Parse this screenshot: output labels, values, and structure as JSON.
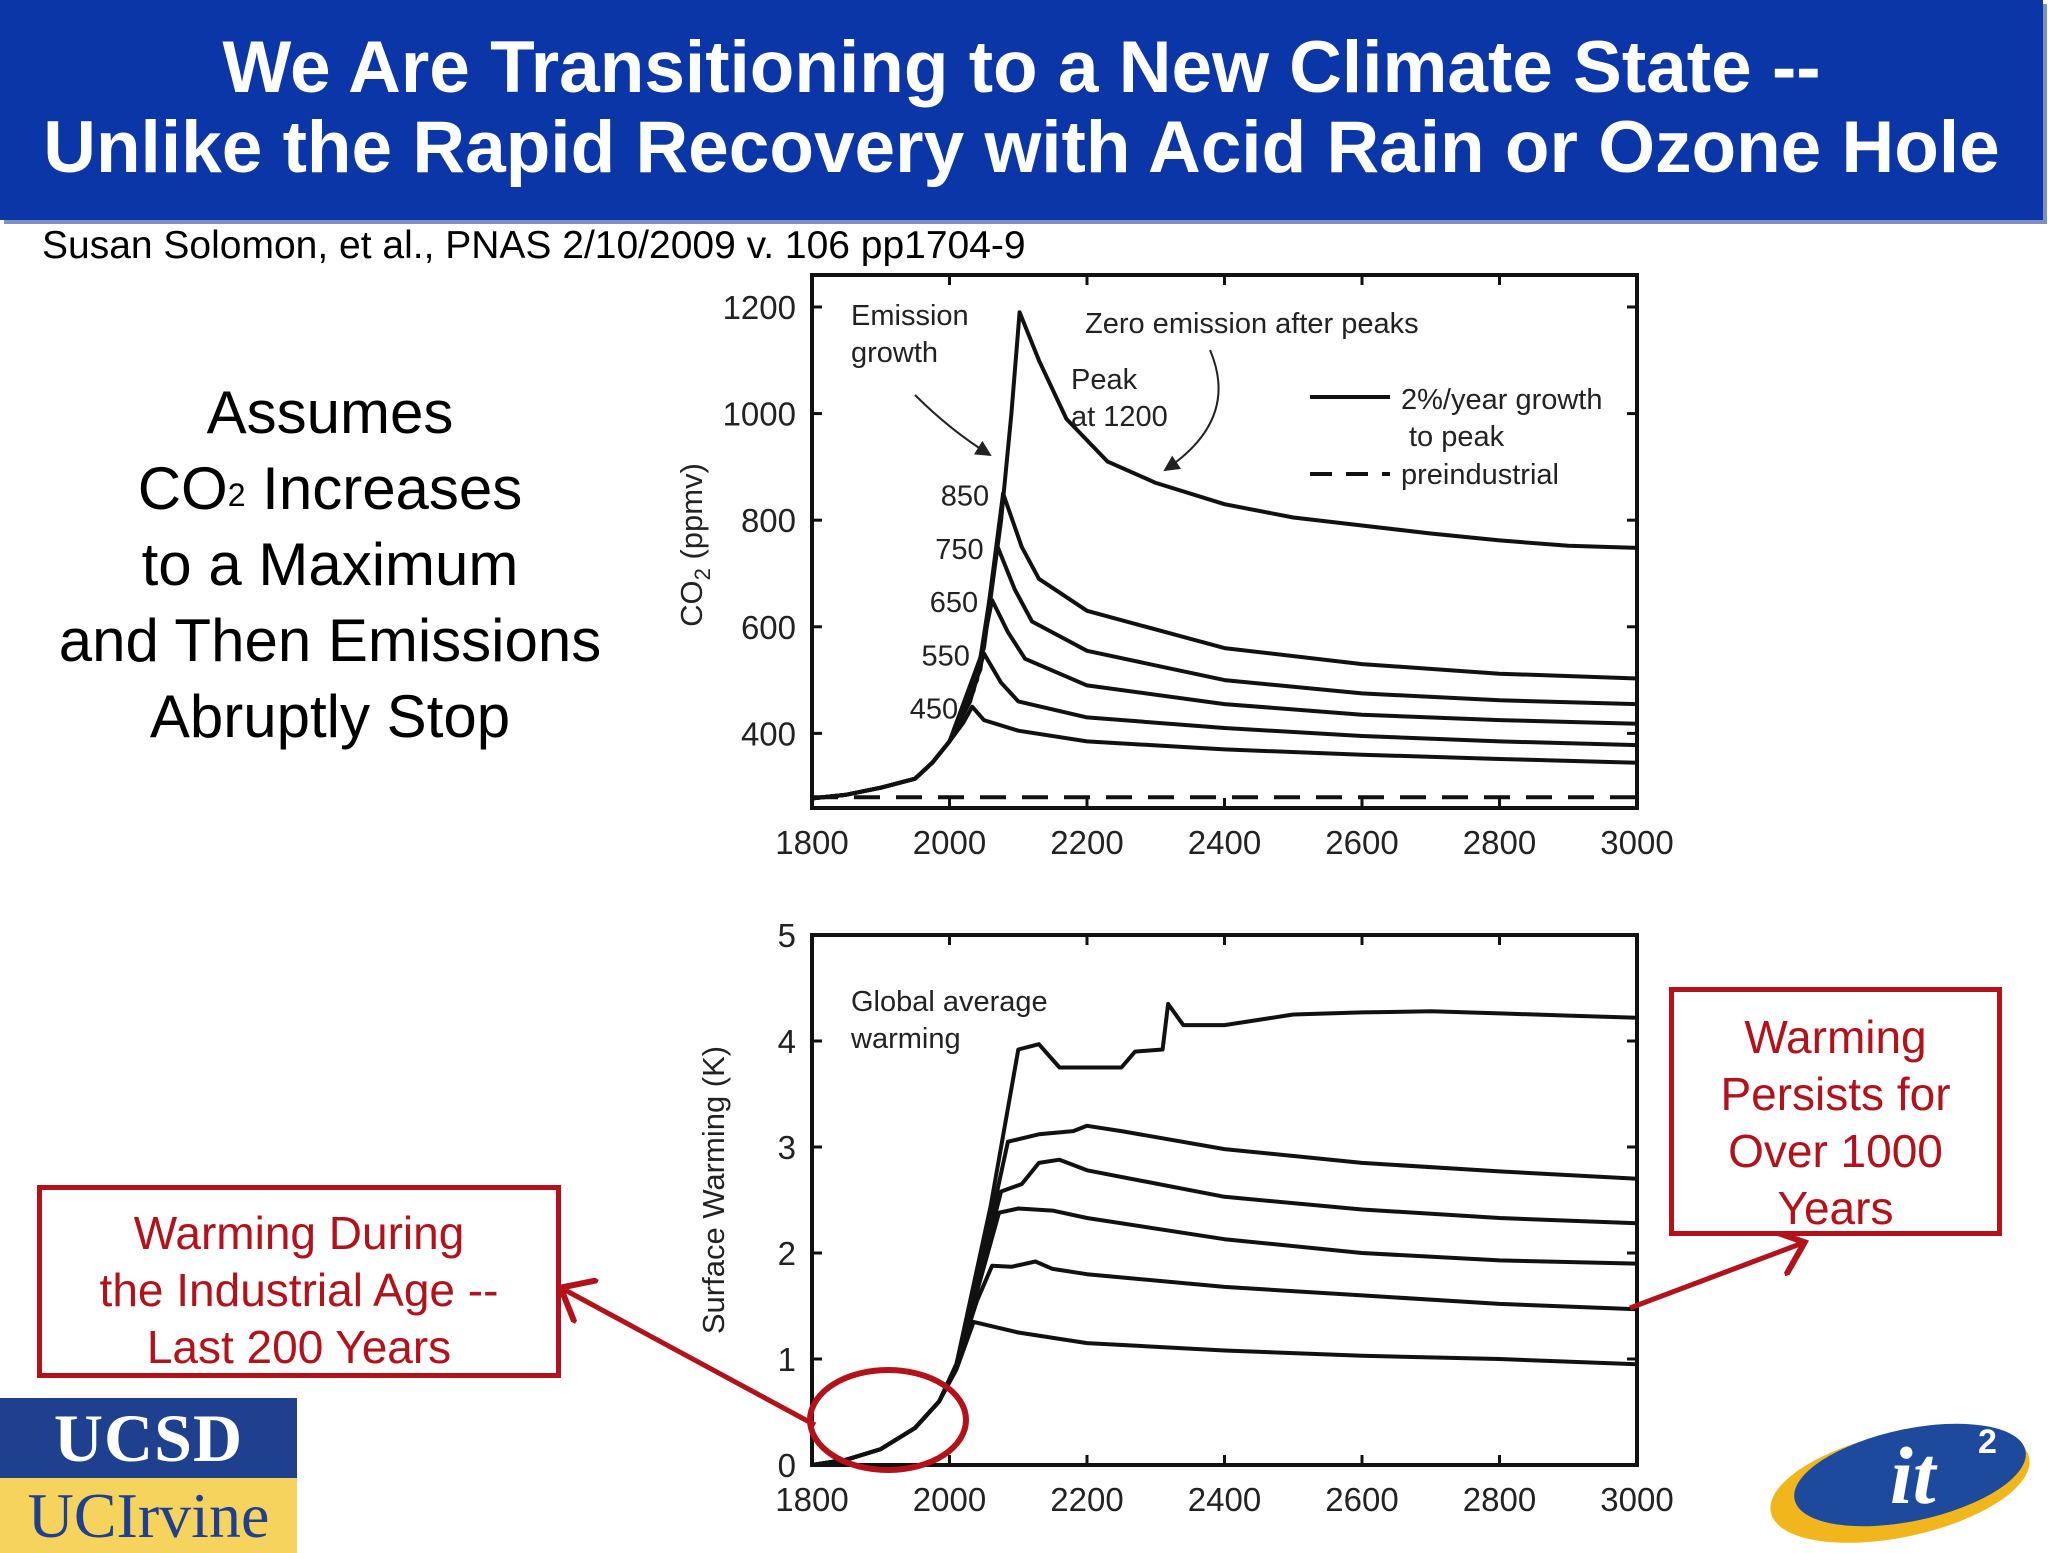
{
  "title": {
    "line1": "We Are Transitioning to a New Climate State --",
    "line2": "Unlike the Rapid Recovery with Acid Rain or Ozone Hole"
  },
  "citation": "Susan Solomon, et al., PNAS 2/10/2009 v. 106 pp1704-9",
  "assumes": {
    "line1": "Assumes",
    "line2_pre": "CO",
    "line2_sup": "2",
    "line2_post": " Increases",
    "line3": "to a Maximum",
    "line4": "and Then Emissions",
    "line5": "Abruptly Stop"
  },
  "callouts": {
    "left": [
      "Warming During",
      "the Industrial Age --",
      "Last 200 Years"
    ],
    "right": [
      "Warming",
      "Persists for",
      "Over 1000",
      "Years"
    ]
  },
  "logos": {
    "ucsd": "UCSD",
    "uci": "UCIrvine",
    "it2": "it",
    "it2_sup": "2"
  },
  "colors": {
    "title_bar": "#0a36a8",
    "callout_red": "#b4121b",
    "ucsd_blue": "#1f3f8f",
    "uci_gold": "#f6d35d"
  },
  "chart_data": [
    {
      "type": "line",
      "ylabel": "CO",
      "ylabel_sub": "2",
      "ylabel_unit": " (ppmv)",
      "xlim": [
        1800,
        3000
      ],
      "ylim": [
        260,
        1260
      ],
      "xticks": [
        1800,
        2000,
        2200,
        2400,
        2600,
        2800,
        3000
      ],
      "yticks": [
        400,
        600,
        800,
        1000,
        1200
      ],
      "legend": {
        "placement": "top-right",
        "solid_line1": "2%/year growth",
        "solid_line2": "to peak",
        "dashed": "preindustrial"
      },
      "annotations": {
        "emission_growth": [
          "Emission",
          "growth"
        ],
        "zero_emission": "Zero emission after peaks",
        "peak": [
          "Peak",
          "at 1200"
        ]
      },
      "series": [
        {
          "label": "450",
          "points": [
            [
              1800,
              278
            ],
            [
              1850,
              285
            ],
            [
              1900,
              298
            ],
            [
              1950,
              315
            ],
            [
              1975,
              345
            ],
            [
              2000,
              385
            ],
            [
              2020,
              420
            ],
            [
              2033,
              450
            ],
            [
              2050,
              425
            ],
            [
              2100,
              405
            ],
            [
              2200,
              385
            ],
            [
              2400,
              370
            ],
            [
              2600,
              360
            ],
            [
              2800,
              352
            ],
            [
              3000,
              345
            ]
          ]
        },
        {
          "label": "550",
          "points": [
            [
              1800,
              278
            ],
            [
              1850,
              285
            ],
            [
              1900,
              298
            ],
            [
              1950,
              315
            ],
            [
              1975,
              345
            ],
            [
              2000,
              385
            ],
            [
              2030,
              460
            ],
            [
              2050,
              550
            ],
            [
              2075,
              495
            ],
            [
              2100,
              460
            ],
            [
              2200,
              430
            ],
            [
              2400,
              410
            ],
            [
              2600,
              395
            ],
            [
              2800,
              385
            ],
            [
              3000,
              378
            ]
          ]
        },
        {
          "label": "650",
          "points": [
            [
              1800,
              278
            ],
            [
              1850,
              285
            ],
            [
              1900,
              298
            ],
            [
              1950,
              315
            ],
            [
              1975,
              345
            ],
            [
              2000,
              385
            ],
            [
              2035,
              480
            ],
            [
              2062,
              650
            ],
            [
              2085,
              590
            ],
            [
              2110,
              540
            ],
            [
              2200,
              490
            ],
            [
              2400,
              455
            ],
            [
              2600,
              435
            ],
            [
              2800,
              425
            ],
            [
              3000,
              418
            ]
          ]
        },
        {
          "label": "750",
          "points": [
            [
              1800,
              278
            ],
            [
              1850,
              285
            ],
            [
              1900,
              298
            ],
            [
              1950,
              315
            ],
            [
              1975,
              345
            ],
            [
              2000,
              385
            ],
            [
              2040,
              500
            ],
            [
              2070,
              750
            ],
            [
              2095,
              670
            ],
            [
              2120,
              610
            ],
            [
              2200,
              555
            ],
            [
              2400,
              500
            ],
            [
              2600,
              475
            ],
            [
              2800,
              462
            ],
            [
              3000,
              455
            ]
          ]
        },
        {
          "label": "850",
          "points": [
            [
              1800,
              278
            ],
            [
              1850,
              285
            ],
            [
              1900,
              298
            ],
            [
              1950,
              315
            ],
            [
              1975,
              345
            ],
            [
              2000,
              385
            ],
            [
              2045,
              520
            ],
            [
              2078,
              850
            ],
            [
              2105,
              750
            ],
            [
              2130,
              690
            ],
            [
              2200,
              630
            ],
            [
              2400,
              560
            ],
            [
              2600,
              530
            ],
            [
              2800,
              512
            ],
            [
              3000,
              503
            ]
          ]
        },
        {
          "label": "1200",
          "points": [
            [
              1800,
              278
            ],
            [
              1850,
              285
            ],
            [
              1900,
              298
            ],
            [
              1950,
              315
            ],
            [
              1975,
              345
            ],
            [
              2000,
              385
            ],
            [
              2050,
              560
            ],
            [
              2075,
              800
            ],
            [
              2090,
              1000
            ],
            [
              2102,
              1190
            ],
            [
              2130,
              1100
            ],
            [
              2170,
              990
            ],
            [
              2230,
              910
            ],
            [
              2300,
              870
            ],
            [
              2400,
              830
            ],
            [
              2500,
              805
            ],
            [
              2600,
              790
            ],
            [
              2700,
              775
            ],
            [
              2800,
              762
            ],
            [
              2900,
              752
            ],
            [
              3000,
              748
            ]
          ]
        },
        {
          "label": "preindustrial",
          "dashed": true,
          "points": [
            [
              1800,
              280
            ],
            [
              3000,
              280
            ]
          ]
        }
      ]
    },
    {
      "type": "line",
      "ylabel": "Surface Warming (K)",
      "xlim": [
        1800,
        3000
      ],
      "ylim": [
        0,
        5
      ],
      "xticks": [
        1800,
        2000,
        2200,
        2400,
        2600,
        2800,
        3000
      ],
      "yticks": [
        0,
        1,
        2,
        3,
        4,
        5
      ],
      "annotations": {
        "global_average": [
          "Global average",
          "warming"
        ]
      },
      "series": [
        {
          "label": "450",
          "points": [
            [
              1800,
              0
            ],
            [
              1850,
              0.05
            ],
            [
              1900,
              0.15
            ],
            [
              1950,
              0.35
            ],
            [
              1985,
              0.6
            ],
            [
              2010,
              0.9
            ],
            [
              2035,
              1.35
            ],
            [
              2100,
              1.25
            ],
            [
              2200,
              1.15
            ],
            [
              2400,
              1.08
            ],
            [
              2600,
              1.03
            ],
            [
              2800,
              1.0
            ],
            [
              3000,
              0.95
            ]
          ]
        },
        {
          "label": "550",
          "points": [
            [
              1800,
              0
            ],
            [
              1850,
              0.05
            ],
            [
              1900,
              0.15
            ],
            [
              1950,
              0.35
            ],
            [
              1985,
              0.6
            ],
            [
              2010,
              0.95
            ],
            [
              2040,
              1.55
            ],
            [
              2062,
              1.88
            ],
            [
              2090,
              1.87
            ],
            [
              2125,
              1.92
            ],
            [
              2150,
              1.85
            ],
            [
              2200,
              1.8
            ],
            [
              2400,
              1.68
            ],
            [
              2600,
              1.6
            ],
            [
              2800,
              1.52
            ],
            [
              3000,
              1.47
            ]
          ]
        },
        {
          "label": "650",
          "points": [
            [
              1800,
              0
            ],
            [
              1850,
              0.05
            ],
            [
              1900,
              0.15
            ],
            [
              1950,
              0.35
            ],
            [
              1985,
              0.6
            ],
            [
              2010,
              0.95
            ],
            [
              2045,
              1.75
            ],
            [
              2072,
              2.38
            ],
            [
              2100,
              2.42
            ],
            [
              2150,
              2.4
            ],
            [
              2200,
              2.33
            ],
            [
              2400,
              2.13
            ],
            [
              2600,
              2.0
            ],
            [
              2800,
              1.93
            ],
            [
              3000,
              1.9
            ]
          ]
        },
        {
          "label": "750",
          "points": [
            [
              1800,
              0
            ],
            [
              1850,
              0.05
            ],
            [
              1900,
              0.15
            ],
            [
              1950,
              0.35
            ],
            [
              1985,
              0.6
            ],
            [
              2010,
              0.95
            ],
            [
              2050,
              1.95
            ],
            [
              2075,
              2.58
            ],
            [
              2105,
              2.65
            ],
            [
              2130,
              2.85
            ],
            [
              2160,
              2.88
            ],
            [
              2200,
              2.78
            ],
            [
              2400,
              2.53
            ],
            [
              2600,
              2.41
            ],
            [
              2800,
              2.33
            ],
            [
              3000,
              2.28
            ]
          ]
        },
        {
          "label": "850",
          "points": [
            [
              1800,
              0
            ],
            [
              1850,
              0.05
            ],
            [
              1900,
              0.15
            ],
            [
              1950,
              0.35
            ],
            [
              1985,
              0.6
            ],
            [
              2010,
              0.95
            ],
            [
              2055,
              2.15
            ],
            [
              2085,
              3.05
            ],
            [
              2130,
              3.12
            ],
            [
              2180,
              3.15
            ],
            [
              2200,
              3.2
            ],
            [
              2250,
              3.15
            ],
            [
              2400,
              2.98
            ],
            [
              2600,
              2.85
            ],
            [
              2800,
              2.77
            ],
            [
              3000,
              2.7
            ]
          ]
        },
        {
          "label": "1200",
          "points": [
            [
              1800,
              0
            ],
            [
              1850,
              0.05
            ],
            [
              1900,
              0.15
            ],
            [
              1950,
              0.35
            ],
            [
              1985,
              0.6
            ],
            [
              2010,
              0.95
            ],
            [
              2060,
              2.45
            ],
            [
              2100,
              3.92
            ],
            [
              2130,
              3.97
            ],
            [
              2160,
              3.75
            ],
            [
              2200,
              3.75
            ],
            [
              2250,
              3.75
            ],
            [
              2270,
              3.9
            ],
            [
              2310,
              3.92
            ],
            [
              2318,
              4.35
            ],
            [
              2340,
              4.15
            ],
            [
              2400,
              4.15
            ],
            [
              2500,
              4.25
            ],
            [
              2600,
              4.27
            ],
            [
              2700,
              4.28
            ],
            [
              2800,
              4.26
            ],
            [
              2900,
              4.24
            ],
            [
              3000,
              4.22
            ]
          ]
        }
      ]
    }
  ]
}
